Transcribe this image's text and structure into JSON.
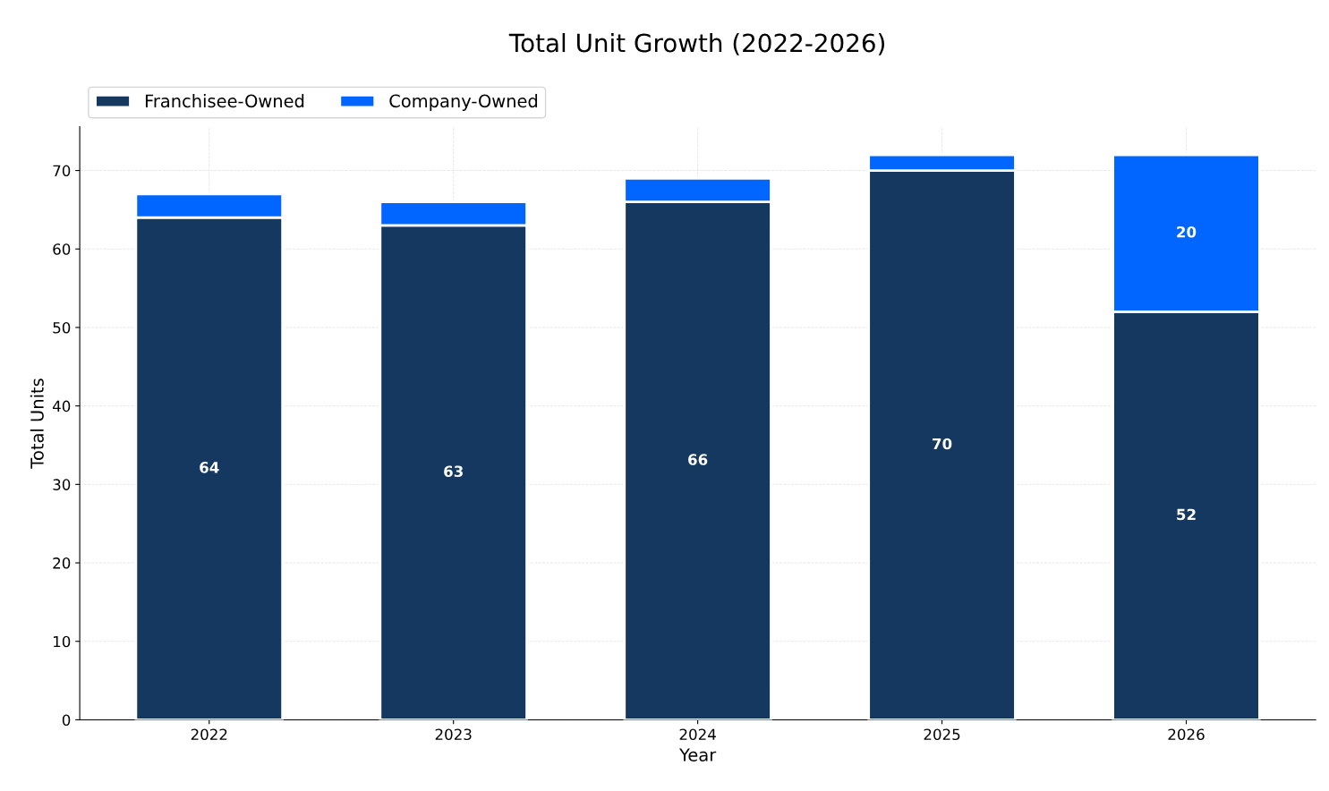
{
  "chart_data": {
    "type": "bar",
    "title": "Total Unit Growth (2022-2026)",
    "xlabel": "Year",
    "ylabel": "Total Units",
    "categories": [
      "2022",
      "2023",
      "2024",
      "2025",
      "2026"
    ],
    "stacked": true,
    "series": [
      {
        "name": "Franchisee-Owned",
        "color": "#14385f",
        "values": [
          64,
          63,
          66,
          70,
          52
        ],
        "value_labels": [
          "64",
          "63",
          "66",
          "70",
          "52"
        ]
      },
      {
        "name": "Company-Owned",
        "color": "#0066ff",
        "values": [
          3,
          3,
          3,
          2,
          20
        ],
        "value_labels": [
          null,
          null,
          null,
          null,
          "20"
        ]
      }
    ],
    "ylim": [
      0,
      75.6
    ],
    "yticks": [
      0,
      10,
      20,
      30,
      40,
      50,
      60,
      70
    ],
    "grid": true,
    "legend": "top left"
  }
}
